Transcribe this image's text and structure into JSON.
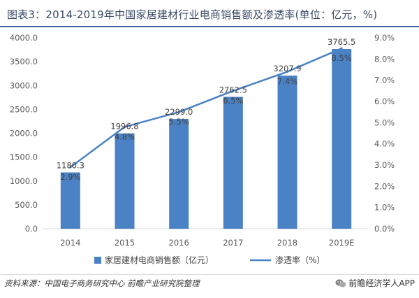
{
  "header": {
    "title": "图表3：2014-2019年中国家居建材行业电商销售额及渗透率(单位：亿元，%)"
  },
  "chart_data": {
    "type": "bar",
    "categories": [
      "2014",
      "2015",
      "2016",
      "2017",
      "2018",
      "2019E"
    ],
    "series": [
      {
        "name": "家居建材电商销售额（亿元）",
        "type": "bar",
        "axis": "left",
        "values": [
          1180.3,
          1996.8,
          2299.0,
          2762.5,
          3207.9,
          3765.5
        ],
        "labels": [
          "1180.3",
          "1996.8",
          "2299.0",
          "2762.5",
          "3207.9",
          "3765.5"
        ],
        "color": "#4a82c5"
      },
      {
        "name": "渗透率（%）",
        "type": "line",
        "axis": "right",
        "values": [
          2.9,
          4.8,
          5.5,
          6.5,
          7.4,
          8.5
        ],
        "labels": [
          "2.9%",
          "4.8%",
          "5.5%",
          "6.5%",
          "7.4%",
          "8.5%"
        ],
        "color": "#4a82c5"
      }
    ],
    "y_left": {
      "min": 0,
      "max": 4000,
      "step": 500,
      "ticks": [
        "0.0",
        "500.0",
        "1000.0",
        "1500.0",
        "2000.0",
        "2500.0",
        "3000.0",
        "3500.0",
        "4000.0"
      ]
    },
    "y_right": {
      "min": 0,
      "max": 9,
      "step": 1,
      "ticks": [
        "0.0%",
        "1.0%",
        "2.0%",
        "3.0%",
        "4.0%",
        "5.0%",
        "6.0%",
        "7.0%",
        "8.0%",
        "9.0%"
      ]
    },
    "grid": false,
    "legend_position": "bottom"
  },
  "footer": {
    "source": "资料来源：中国电子商务研究中心 前瞻产业研究院整理",
    "brand": "前瞻经济学人APP"
  },
  "colors": {
    "bar": "#4a82c5",
    "line": "#4a82c5",
    "title": "#3b4a68",
    "title_underline": "#3f62a8"
  }
}
